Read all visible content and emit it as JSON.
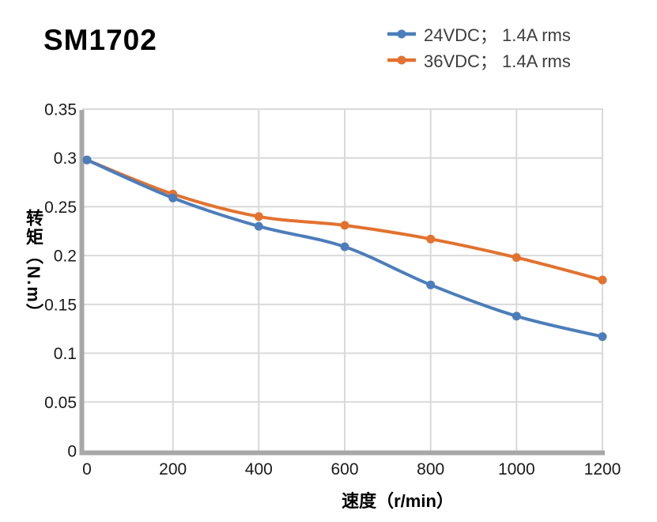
{
  "chart_data": {
    "type": "line",
    "title": "SM1702",
    "xlabel": "速度（r/min）",
    "ylabel": "转矩（N.m）",
    "x": [
      0,
      200,
      400,
      600,
      800,
      1000,
      1200
    ],
    "series": [
      {
        "name": "24VDC； 1.4A rms",
        "color": "#4C7DBB",
        "values": [
          0.298,
          0.259,
          0.23,
          0.209,
          0.17,
          0.138,
          0.117
        ]
      },
      {
        "name": "36VDC； 1.4A rms",
        "color": "#E2722F",
        "values": [
          0.298,
          0.263,
          0.24,
          0.231,
          0.217,
          0.198,
          0.175
        ]
      }
    ],
    "xlim": [
      0,
      1200
    ],
    "ylim": [
      0,
      0.35
    ],
    "xticks": [
      0,
      200,
      400,
      600,
      800,
      1000,
      1200
    ],
    "yticks": [
      0,
      0.05,
      0.1,
      0.15,
      0.2,
      0.25,
      0.3,
      0.35
    ],
    "grid": true,
    "legend_position": "top-right",
    "style": {
      "grid_color": "#D9D9D9",
      "axis_color": "#A7A7A7",
      "tick_text_color": "#1A1A1A",
      "legend_text_color": "#3D3D3D",
      "line_width": 4,
      "marker_radius": 5.5
    }
  }
}
